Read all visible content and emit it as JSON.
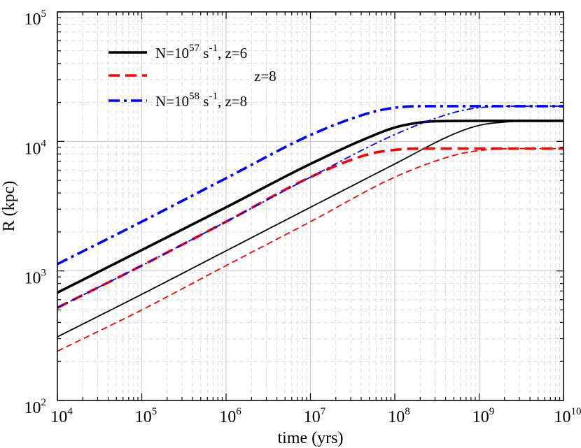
{
  "chart_data": {
    "type": "line",
    "title": "",
    "xlabel": "time (yrs)",
    "ylabel": "R (kpc)",
    "xscale": "log",
    "yscale": "log",
    "xlim": [
      10000,
      10000000000
    ],
    "ylim": [
      100,
      100000
    ],
    "grid": true,
    "legend_position": "top-left",
    "x_ticks": [
      {
        "base": "10",
        "exp": "4"
      },
      {
        "base": "10",
        "exp": "5"
      },
      {
        "base": "10",
        "exp": "6"
      },
      {
        "base": "10",
        "exp": "7"
      },
      {
        "base": "10",
        "exp": "8"
      },
      {
        "base": "10",
        "exp": "9"
      },
      {
        "base": "10",
        "exp": "10"
      }
    ],
    "y_ticks": [
      {
        "base": "10",
        "exp": "2"
      },
      {
        "base": "10",
        "exp": "3"
      },
      {
        "base": "10",
        "exp": "4"
      },
      {
        "base": "10",
        "exp": "5"
      }
    ],
    "legend": [
      {
        "prefix": "N=10",
        "exp1": "57",
        "mid": " s",
        "exp2": "-1",
        "suffix": ", z=6",
        "color": "#000000",
        "style": "solid"
      },
      {
        "prefix": "",
        "exp1": "",
        "mid": "",
        "exp2": "",
        "suffix": "z=8",
        "color": "#ff0000",
        "style": "dashed"
      },
      {
        "prefix": "N=10",
        "exp1": "58",
        "mid": " s",
        "exp2": "-1",
        "suffix": ", z=8",
        "color": "#0000ff",
        "style": "dashdot"
      }
    ],
    "series": [
      {
        "name": "N=1e57, z=6 (thick)",
        "color": "#000000",
        "style": "solid",
        "width": "thick",
        "x": [
          10000,
          100000,
          1000000,
          10000000,
          50000000,
          100000000,
          200000000,
          300000000,
          1000000000,
          10000000000
        ],
        "y": [
          680,
          1450,
          3100,
          6700,
          10800,
          12800,
          14000,
          14300,
          14400,
          14400
        ]
      },
      {
        "name": "N=1e57, z=6 (thin)",
        "color": "#000000",
        "style": "solid",
        "width": "thin",
        "x": [
          10000,
          100000,
          1000000,
          10000000,
          100000000,
          500000000,
          1000000000,
          2000000000,
          4000000000,
          10000000000
        ],
        "y": [
          310,
          660,
          1430,
          3100,
          6700,
          11400,
          13300,
          14100,
          14400,
          14400
        ]
      },
      {
        "name": "z=8 (thick)",
        "color": "#ff0000",
        "style": "dashed",
        "width": "thick",
        "x": [
          10000,
          100000,
          1000000,
          10000000,
          50000000,
          100000000,
          200000000,
          1000000000,
          10000000000
        ],
        "y": [
          520,
          1100,
          2400,
          5300,
          8000,
          8600,
          8800,
          8800,
          8800
        ]
      },
      {
        "name": "z=8 (thin)",
        "color": "#ff0000",
        "style": "dashed",
        "width": "thin",
        "x": [
          10000,
          100000,
          1000000,
          10000000,
          100000000,
          500000000,
          1000000000,
          3000000000,
          10000000000
        ],
        "y": [
          240,
          500,
          1100,
          2400,
          5300,
          7800,
          8500,
          8800,
          8800
        ]
      },
      {
        "name": "N=1e58, z=8 (thick)",
        "color": "#0000ff",
        "style": "dashdot",
        "width": "thick",
        "x": [
          10000,
          100000,
          1000000,
          10000000,
          50000000,
          100000000,
          200000000,
          1000000000,
          10000000000
        ],
        "y": [
          1130,
          2400,
          5200,
          11200,
          16600,
          18200,
          18700,
          18700,
          18700
        ]
      },
      {
        "name": "N=1e58, z=8 (thin)",
        "color": "#0000ff",
        "style": "dashdot",
        "width": "thin",
        "x": [
          10000,
          100000,
          1000000,
          10000000,
          100000000,
          500000000,
          1000000000,
          3000000000,
          10000000000
        ],
        "y": [
          520,
          1100,
          2400,
          5300,
          11300,
          16700,
          18200,
          18700,
          18700
        ]
      }
    ]
  }
}
